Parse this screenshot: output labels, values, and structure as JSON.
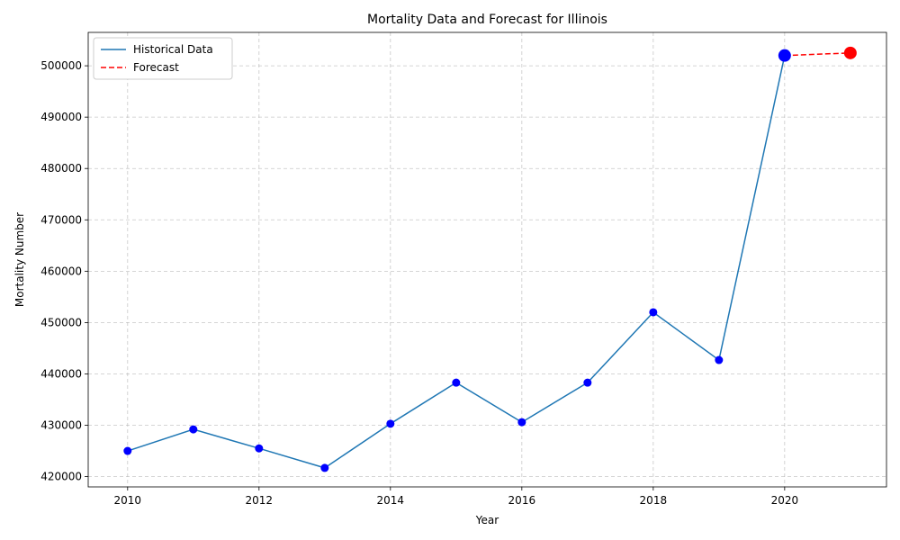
{
  "chart_data": {
    "type": "line",
    "title": "Mortality Data and Forecast for Illinois",
    "xlabel": "Year",
    "ylabel": "Mortality Number",
    "xlim": [
      2009.4,
      2021.55
    ],
    "ylim": [
      418000,
      506500
    ],
    "xticks": [
      2010,
      2012,
      2014,
      2016,
      2018,
      2020
    ],
    "yticks": [
      420000,
      430000,
      440000,
      450000,
      460000,
      470000,
      480000,
      490000,
      500000
    ],
    "grid": true,
    "legend_position": "top-left",
    "series": [
      {
        "name": "Historical Data",
        "style": "solid",
        "color": "#1f77b4",
        "marker_color": "#0000ff",
        "x": [
          2010,
          2011,
          2012,
          2013,
          2014,
          2015,
          2016,
          2017,
          2018,
          2019,
          2020
        ],
        "y": [
          425000,
          429200,
          425500,
          421700,
          430300,
          438300,
          430600,
          438300,
          452000,
          442700,
          502000
        ]
      },
      {
        "name": "Forecast",
        "style": "dashed",
        "color": "#ff0000",
        "marker_color": "#ff0000",
        "x": [
          2020,
          2021
        ],
        "y": [
          502000,
          502500
        ]
      }
    ],
    "highlight_points": [
      {
        "x": 2020,
        "y": 502000,
        "color": "#0000ff"
      },
      {
        "x": 2021,
        "y": 502500,
        "color": "#ff0000"
      }
    ]
  }
}
